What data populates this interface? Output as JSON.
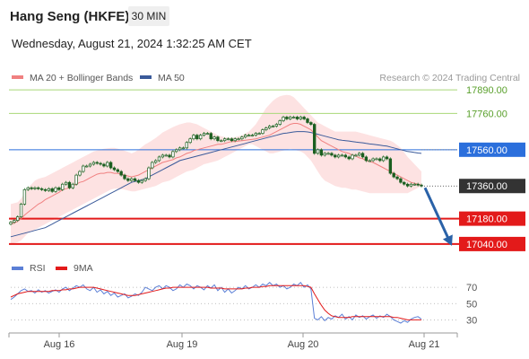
{
  "header": {
    "title": "Hang Seng (HKFE)",
    "timeframe": "30 MIN",
    "date": "Wednesday, August 21, 2024 1:32:25 AM CET"
  },
  "chart_data": [
    {
      "type": "candlestick",
      "legend": [
        {
          "name": "MA 20 + Bollinger Bands",
          "color": "#f08080"
        },
        {
          "name": "MA 50",
          "color": "#3a5a9a"
        }
      ],
      "legend_placement": "top-left",
      "watermark": "Research © 2024 Trading Central",
      "ylim": [
        16990,
        17960
      ],
      "y_tick_labels": [
        17890,
        17760,
        17560,
        17360,
        17180,
        17040
      ],
      "x_tick_labels": [
        "Aug 16",
        "Aug 19",
        "Aug 20",
        "Aug 21"
      ],
      "last_price": 17360,
      "levels": [
        {
          "value": 17890,
          "label": "17890.00",
          "color": "#a8d878",
          "kind": "resistance"
        },
        {
          "value": 17760,
          "label": "17760.00",
          "color": "#a8d878",
          "kind": "resistance"
        },
        {
          "value": 17560,
          "label": "17560.00",
          "color": "#2b6fdc",
          "kind": "pivot"
        },
        {
          "value": 17180,
          "label": "17180.00",
          "color": "#e31a1a",
          "kind": "support"
        },
        {
          "value": 17040,
          "label": "17040.00",
          "color": "#e31a1a",
          "kind": "support"
        }
      ],
      "last_price_label": "17360.00",
      "close": [
        17160,
        17170,
        17190,
        17260,
        17340,
        17350,
        17345,
        17350,
        17345,
        17340,
        17335,
        17345,
        17330,
        17350,
        17340,
        17370,
        17380,
        17350,
        17370,
        17420,
        17440,
        17470,
        17470,
        17480,
        17490,
        17485,
        17480,
        17470,
        17490,
        17460,
        17450,
        17440,
        17420,
        17400,
        17390,
        17400,
        17390,
        17380,
        17390,
        17400,
        17460,
        17490,
        17500,
        17520,
        17530,
        17530,
        17520,
        17550,
        17560,
        17570,
        17570,
        17600,
        17620,
        17640,
        17620,
        17640,
        17650,
        17650,
        17620,
        17630,
        17610,
        17610,
        17620,
        17620,
        17610,
        17620,
        17620,
        17630,
        17640,
        17640,
        17640,
        17650,
        17650,
        17670,
        17680,
        17690,
        17690,
        17700,
        17720,
        17740,
        17730,
        17740,
        17740,
        17730,
        17740,
        17730,
        17710,
        17700,
        17540,
        17560,
        17530,
        17540,
        17540,
        17530,
        17520,
        17530,
        17530,
        17520,
        17510,
        17530,
        17530,
        17540,
        17520,
        17500,
        17500,
        17510,
        17510,
        17500,
        17520,
        17510,
        17430,
        17410,
        17400,
        17380,
        17370,
        17360,
        17370,
        17370,
        17365,
        17360
      ],
      "ma20": [
        17150,
        17155,
        17165,
        17180,
        17200,
        17215,
        17230,
        17245,
        17260,
        17270,
        17285,
        17295,
        17305,
        17315,
        17325,
        17340,
        17345,
        17350,
        17360,
        17370,
        17380,
        17385,
        17395,
        17405,
        17415,
        17425,
        17430,
        17430,
        17435,
        17435,
        17430,
        17430,
        17425,
        17420,
        17415,
        17410,
        17415,
        17420,
        17430,
        17440,
        17450,
        17460,
        17470,
        17480,
        17490,
        17495,
        17500,
        17505,
        17515,
        17520,
        17530,
        17540,
        17545,
        17555,
        17560,
        17565,
        17570,
        17575,
        17580,
        17585,
        17590,
        17590,
        17595,
        17600,
        17605,
        17605,
        17608,
        17610,
        17612,
        17615,
        17617,
        17620,
        17625,
        17630,
        17635,
        17640,
        17650,
        17660,
        17670,
        17680,
        17690,
        17700,
        17705,
        17705,
        17700,
        17690,
        17680,
        17670,
        17650,
        17630,
        17610,
        17600,
        17590,
        17580,
        17570,
        17560,
        17550,
        17545,
        17540,
        17530,
        17525,
        17515,
        17510,
        17500,
        17495,
        17490,
        17480,
        17470,
        17460,
        17450,
        17440,
        17430,
        17420,
        17410,
        17400,
        17390,
        17380,
        17375,
        17370,
        17365
      ],
      "bb_upper": [
        17260,
        17265,
        17270,
        17290,
        17320,
        17350,
        17370,
        17390,
        17400,
        17405,
        17410,
        17420,
        17430,
        17440,
        17450,
        17460,
        17470,
        17480,
        17490,
        17500,
        17510,
        17520,
        17530,
        17540,
        17550,
        17555,
        17560,
        17565,
        17568,
        17570,
        17570,
        17566,
        17560,
        17554,
        17548,
        17540,
        17548,
        17560,
        17575,
        17590,
        17600,
        17612,
        17625,
        17640,
        17655,
        17665,
        17675,
        17685,
        17693,
        17700,
        17705,
        17710,
        17710,
        17705,
        17700,
        17690,
        17680,
        17670,
        17660,
        17650,
        17640,
        17635,
        17630,
        17628,
        17628,
        17630,
        17635,
        17640,
        17650,
        17660,
        17680,
        17700,
        17730,
        17760,
        17790,
        17810,
        17830,
        17845,
        17855,
        17860,
        17862,
        17860,
        17850,
        17830,
        17810,
        17790,
        17770,
        17750,
        17730,
        17710,
        17700,
        17690,
        17680,
        17670,
        17660,
        17660,
        17660,
        17660,
        17660,
        17660,
        17660,
        17655,
        17650,
        17645,
        17640,
        17635,
        17630,
        17625,
        17620,
        17615,
        17610,
        17600,
        17585,
        17570,
        17545,
        17520,
        17500,
        17480,
        17460,
        17440
      ],
      "bb_lower": [
        17040,
        17045,
        17050,
        17060,
        17080,
        17100,
        17110,
        17120,
        17130,
        17140,
        17150,
        17160,
        17170,
        17180,
        17190,
        17200,
        17210,
        17220,
        17230,
        17240,
        17250,
        17260,
        17270,
        17280,
        17290,
        17300,
        17310,
        17320,
        17330,
        17340,
        17345,
        17345,
        17343,
        17340,
        17335,
        17330,
        17330,
        17335,
        17340,
        17345,
        17350,
        17355,
        17360,
        17370,
        17380,
        17385,
        17390,
        17400,
        17410,
        17420,
        17430,
        17440,
        17445,
        17450,
        17460,
        17470,
        17480,
        17485,
        17490,
        17495,
        17500,
        17510,
        17520,
        17530,
        17540,
        17550,
        17560,
        17570,
        17580,
        17590,
        17590,
        17580,
        17570,
        17560,
        17550,
        17540,
        17540,
        17545,
        17550,
        17555,
        17560,
        17565,
        17560,
        17555,
        17550,
        17540,
        17520,
        17500,
        17470,
        17440,
        17410,
        17390,
        17380,
        17370,
        17360,
        17355,
        17350,
        17350,
        17345,
        17340,
        17340,
        17335,
        17330,
        17325,
        17320,
        17320,
        17320,
        17320,
        17320,
        17320,
        17320,
        17320,
        17320,
        17320,
        17320,
        17320,
        17330,
        17340,
        17350,
        17360
      ],
      "ma50": [
        17080,
        17085,
        17090,
        17095,
        17100,
        17105,
        17110,
        17115,
        17120,
        17125,
        17130,
        17140,
        17150,
        17160,
        17170,
        17180,
        17190,
        17200,
        17210,
        17220,
        17230,
        17240,
        17250,
        17260,
        17270,
        17280,
        17290,
        17300,
        17310,
        17320,
        17330,
        17340,
        17350,
        17360,
        17370,
        17380,
        17385,
        17390,
        17395,
        17400,
        17410,
        17420,
        17430,
        17440,
        17450,
        17460,
        17470,
        17480,
        17490,
        17500,
        17505,
        17510,
        17515,
        17520,
        17525,
        17530,
        17535,
        17540,
        17545,
        17550,
        17555,
        17560,
        17565,
        17570,
        17575,
        17580,
        17585,
        17590,
        17595,
        17600,
        17605,
        17610,
        17615,
        17620,
        17625,
        17630,
        17635,
        17640,
        17645,
        17650,
        17652,
        17655,
        17658,
        17660,
        17660,
        17660,
        17658,
        17655,
        17650,
        17645,
        17640,
        17635,
        17630,
        17625,
        17620,
        17615,
        17612,
        17610,
        17608,
        17605,
        17602,
        17600,
        17598,
        17595,
        17592,
        17590,
        17588,
        17585,
        17582,
        17580,
        17575,
        17570,
        17565,
        17560,
        17555,
        17550,
        17548,
        17545,
        17542,
        17540
      ],
      "forecast": {
        "from": 17360,
        "to": 17040,
        "color": "#2a62a8"
      }
    },
    {
      "type": "line",
      "legend": [
        {
          "name": "RSI",
          "color": "#5b7fd6"
        },
        {
          "name": "9MA",
          "color": "#e31a1a"
        }
      ],
      "ylim": [
        15,
        90
      ],
      "y_tick_labels": [
        70,
        50,
        30
      ],
      "series": [
        {
          "name": "RSI",
          "values": [
            55,
            58,
            62,
            66,
            68,
            65,
            66,
            63,
            67,
            64,
            66,
            63,
            65,
            67,
            64,
            68,
            70,
            66,
            69,
            72,
            70,
            73,
            68,
            66,
            70,
            64,
            67,
            62,
            65,
            60,
            63,
            58,
            60,
            62,
            57,
            59,
            62,
            60,
            64,
            70,
            68,
            66,
            70,
            72,
            68,
            72,
            70,
            66,
            68,
            73,
            70,
            74,
            72,
            68,
            72,
            70,
            67,
            72,
            69,
            73,
            66,
            70,
            64,
            68,
            63,
            66,
            70,
            68,
            72,
            68,
            70,
            73,
            70,
            74,
            72,
            76,
            72,
            74,
            70,
            72,
            68,
            70,
            74,
            72,
            76,
            70,
            73,
            68,
            32,
            30,
            34,
            29,
            33,
            31,
            35,
            33,
            37,
            31,
            34,
            30,
            36,
            33,
            35,
            31,
            34,
            36,
            32,
            35,
            33,
            37,
            34,
            30,
            28,
            26,
            29,
            27,
            31,
            33,
            34,
            31
          ]
        },
        {
          "name": "9MA",
          "values": [
            58,
            60,
            62,
            63,
            64,
            65,
            65,
            65,
            65,
            65,
            65,
            65,
            66,
            66,
            66,
            67,
            67,
            68,
            68,
            69,
            70,
            70,
            70,
            70,
            70,
            69,
            68,
            67,
            66,
            65,
            64,
            63,
            62,
            61,
            60,
            60,
            60,
            61,
            62,
            63,
            64,
            65,
            66,
            67,
            68,
            69,
            69,
            70,
            70,
            70,
            70,
            70,
            70,
            70,
            70,
            70,
            70,
            70,
            69,
            69,
            69,
            69,
            68,
            68,
            68,
            68,
            68,
            68,
            69,
            69,
            70,
            70,
            70,
            71,
            71,
            72,
            72,
            72,
            72,
            72,
            72,
            72,
            72,
            72,
            72,
            72,
            71,
            70,
            62,
            55,
            48,
            42,
            38,
            35,
            34,
            33,
            33,
            33,
            33,
            34,
            34,
            34,
            34,
            34,
            34,
            34,
            34,
            34,
            34,
            34,
            34,
            33,
            33,
            32,
            31,
            30,
            30,
            30,
            30,
            30
          ]
        }
      ]
    }
  ]
}
